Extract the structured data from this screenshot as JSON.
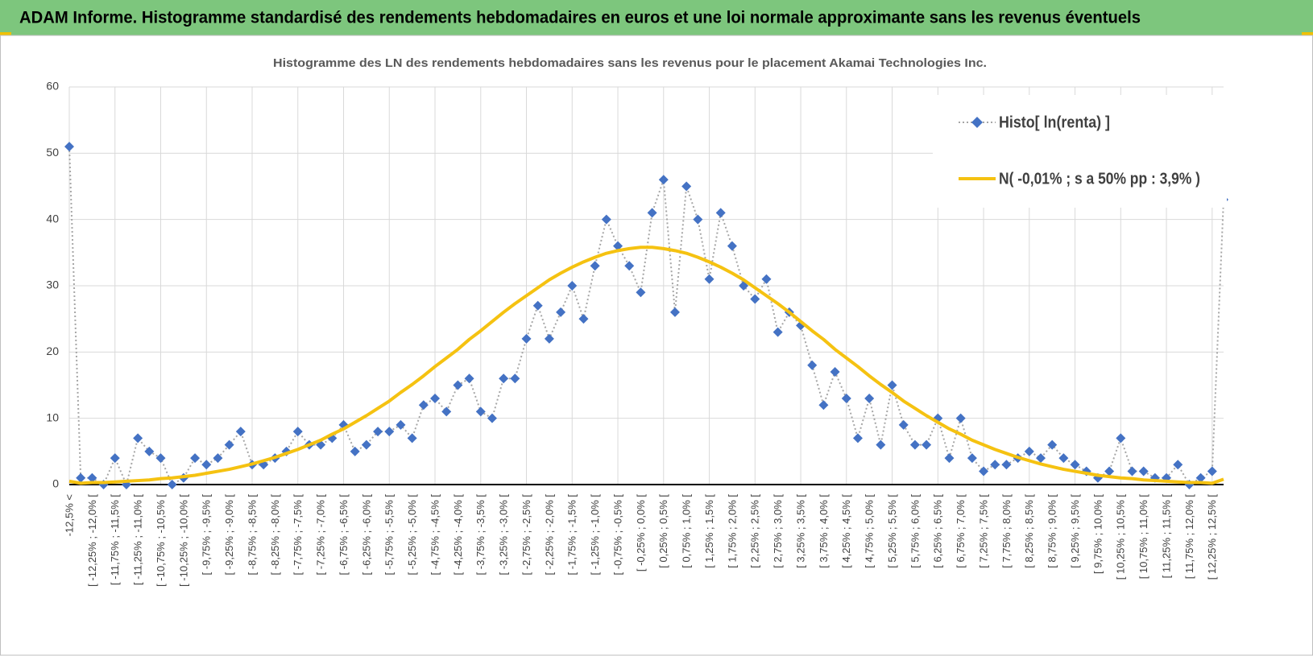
{
  "header": {
    "title": "ADAM Informe. Histogramme standardisé des rendements hebdomadaires en euros et une loi normale approximante sans les revenus éventuels"
  },
  "chart_data": {
    "type": "line",
    "title": "Histogramme des LN des rendements hebdomadaires sans les revenus pour le placement Akamai Technologies Inc.",
    "categories": [
      "-12,5% <",
      null,
      "[ -12,25% ; -12,0% [",
      null,
      "[ -11,75% ; -11,5% [",
      null,
      "[ -11,25% ; -11,0% [",
      null,
      "[ -10,75% ; -10,5% [",
      null,
      "[ -10,25% ; -10,0% [",
      null,
      "[ -9,75% ; -9,5% [",
      null,
      "[ -9,25% ; -9,0% [",
      null,
      "[ -8,75% ; -8,5% [",
      null,
      "[ -8,25% ; -8,0% [",
      null,
      "[ -7,75% ; -7,5% [",
      null,
      "[ -7,25% ; -7,0% [",
      null,
      "[ -6,75% ; -6,5% [",
      null,
      "[ -6,25% ; -6,0% [",
      null,
      "[ -5,75% ; -5,5% [",
      null,
      "[ -5,25% ; -5,0% [",
      null,
      "[ -4,75% ; -4,5% [",
      null,
      "[ -4,25% ; -4,0% [",
      null,
      "[ -3,75% ; -3,5% [",
      null,
      "[ -3,25% ; -3,0% [",
      null,
      "[ -2,75% ; -2,5% [",
      null,
      "[ -2,25% ; -2,0% [",
      null,
      "[ -1,75% ; -1,5% [",
      null,
      "[ -1,25% ; -1,0% [",
      null,
      "[ -0,75% ; -0,5% [",
      null,
      "[ -0,25% ; 0,0% [",
      null,
      "[ 0,25% ; 0,5% [",
      null,
      "[ 0,75% ; 1,0% [",
      null,
      "[ 1,25% ; 1,5% [",
      null,
      "[ 1,75% ; 2,0% [",
      null,
      "[ 2,25% ; 2,5% [",
      null,
      "[ 2,75% ; 3,0% [",
      null,
      "[ 3,25% ; 3,5% [",
      null,
      "[ 3,75% ; 4,0% [",
      null,
      "[ 4,25% ; 4,5% [",
      null,
      "[ 4,75% ; 5,0% [",
      null,
      "[ 5,25% ; 5,5% [",
      null,
      "[ 5,75% ; 6,0% [",
      null,
      "[ 6,25% ; 6,5% [",
      null,
      "[ 6,75% ; 7,0% [",
      null,
      "[ 7,25% ; 7,5% [",
      null,
      "[ 7,75% ; 8,0% [",
      null,
      "[ 8,25% ; 8,5% [",
      null,
      "[ 8,75% ; 9,0% [",
      null,
      "[ 9,25% ; 9,5% [",
      null,
      "[ 9,75% ; 10,0% [",
      null,
      "[ 10,25% ; 10,5% [",
      null,
      "[ 10,75% ; 11,0% [",
      null,
      "[ 11,25% ; 11,5% [",
      null,
      "[ 11,75% ; 12,0% [",
      null,
      "[ 12,25% ; 12,5% [",
      null
    ],
    "series": [
      {
        "name": "Histo[ ln(renta) ]",
        "color": "#4472c4",
        "line_color": "#a6a6a6",
        "values": [
          51,
          1,
          1,
          0,
          4,
          0,
          7,
          5,
          4,
          0,
          1,
          4,
          3,
          4,
          6,
          8,
          3,
          3,
          4,
          5,
          8,
          6,
          6,
          7,
          9,
          5,
          6,
          8,
          8,
          9,
          7,
          12,
          13,
          11,
          15,
          16,
          11,
          10,
          16,
          16,
          22,
          27,
          22,
          26,
          30,
          25,
          33,
          40,
          36,
          33,
          29,
          41,
          46,
          26,
          45,
          40,
          31,
          41,
          36,
          30,
          28,
          31,
          23,
          26,
          24,
          18,
          12,
          17,
          13,
          7,
          13,
          6,
          15,
          9,
          6,
          6,
          10,
          4,
          10,
          4,
          2,
          3,
          3,
          4,
          5,
          4,
          6,
          4,
          3,
          2,
          1,
          2,
          7,
          2,
          2,
          1,
          1,
          3,
          0,
          1,
          2,
          43
        ]
      },
      {
        "name": "N( -0,01% ; s a 50% pp : 3,9% )",
        "color": "#f5c211",
        "values": [
          0.5,
          0.2,
          0.3,
          0.3,
          0.4,
          0.5,
          0.6,
          0.7,
          0.9,
          1.0,
          1.2,
          1.4,
          1.7,
          2.0,
          2.3,
          2.7,
          3.1,
          3.6,
          4.1,
          4.7,
          5.3,
          6.0,
          6.7,
          7.6,
          8.4,
          9.4,
          10.4,
          11.5,
          12.6,
          13.9,
          15.1,
          16.4,
          17.8,
          19.1,
          20.4,
          21.9,
          23.2,
          24.6,
          26.0,
          27.3,
          28.5,
          29.7,
          30.9,
          31.9,
          32.8,
          33.6,
          34.3,
          34.9,
          35.3,
          35.6,
          35.8,
          35.8,
          35.6,
          35.3,
          34.9,
          34.3,
          33.6,
          32.8,
          31.9,
          30.9,
          29.7,
          28.5,
          27.3,
          26.0,
          24.6,
          23.2,
          21.9,
          20.4,
          19.1,
          17.8,
          16.4,
          15.1,
          13.9,
          12.6,
          11.5,
          10.4,
          9.4,
          8.4,
          7.6,
          6.7,
          6.0,
          5.3,
          4.7,
          4.1,
          3.6,
          3.1,
          2.7,
          2.3,
          2.0,
          1.7,
          1.4,
          1.2,
          1.0,
          0.9,
          0.7,
          0.6,
          0.5,
          0.4,
          0.3,
          0.3,
          0.2,
          0.8
        ]
      }
    ],
    "ylim": [
      0,
      60
    ],
    "yticks": [
      0,
      10,
      20,
      30,
      40,
      50,
      60
    ],
    "grid": true,
    "legend": "upper right"
  }
}
